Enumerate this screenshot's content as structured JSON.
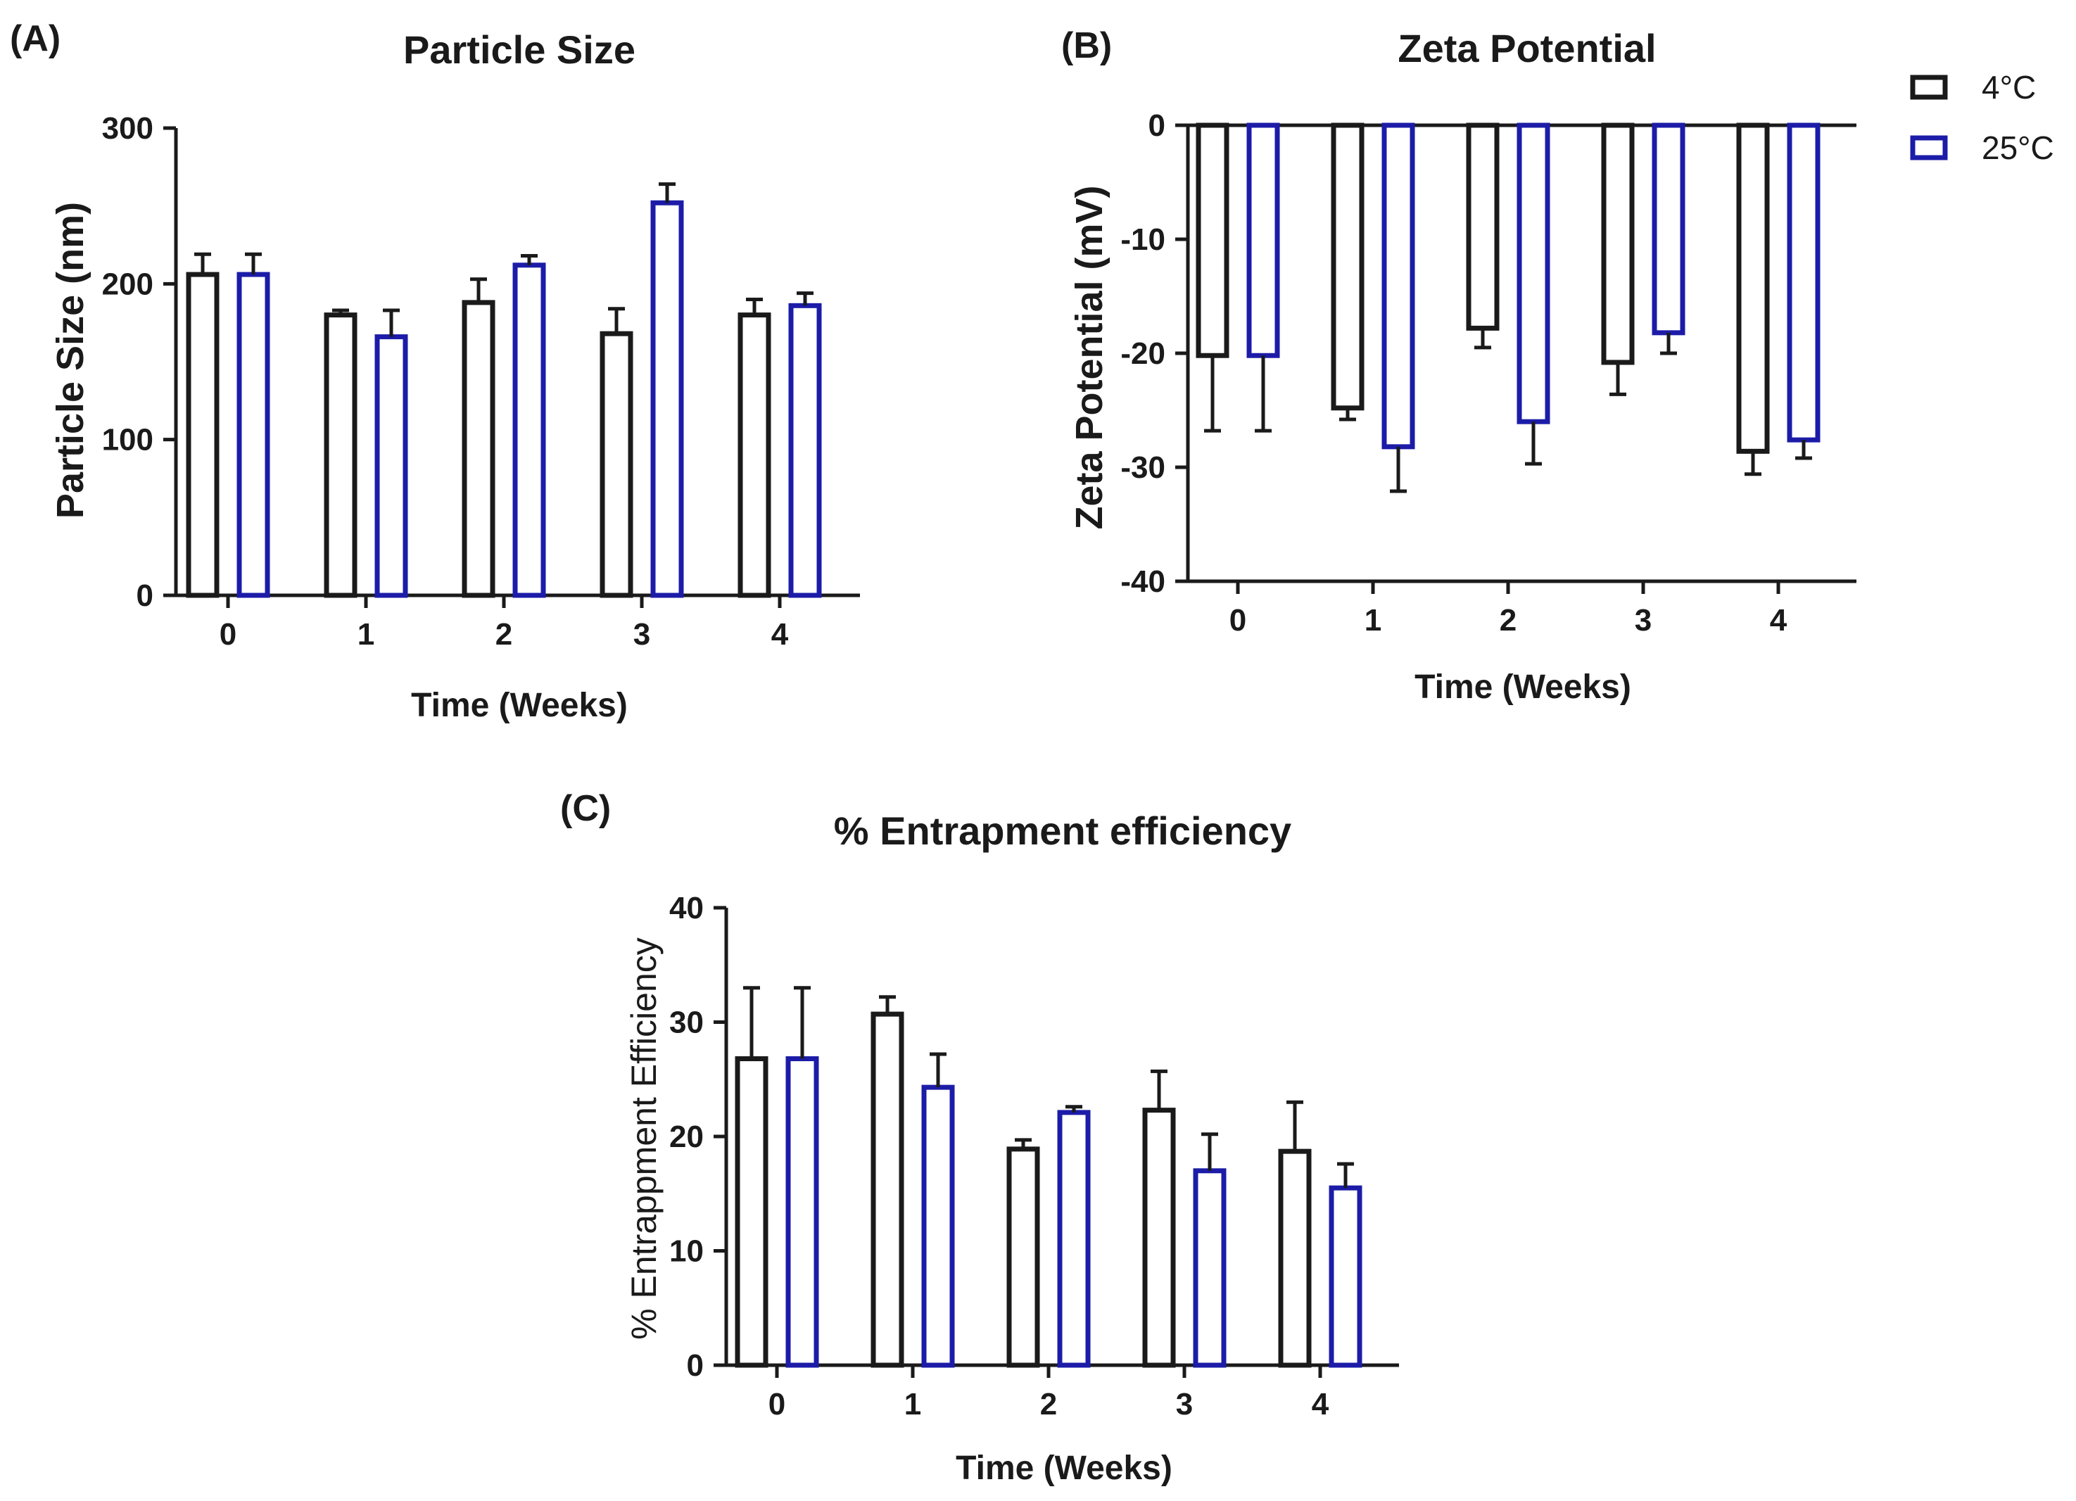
{
  "series_info": [
    {
      "name": "4°C",
      "color": "#1a1a1a"
    },
    {
      "name": "25°C",
      "color": "#1c1ca8"
    }
  ],
  "chart_data": [
    {
      "panel": "(A)",
      "type": "bar",
      "title": "Particle Size",
      "xlabel": "Time (Weeks)",
      "ylabel": "Particle Size (nm)",
      "categories": [
        "0",
        "1",
        "2",
        "3",
        "4"
      ],
      "ylim": [
        0,
        300
      ],
      "yticks": [
        "0",
        "100",
        "200",
        "300"
      ],
      "series": [
        {
          "name": "4°C",
          "values": [
            206,
            180,
            188,
            168,
            180
          ],
          "errors": [
            13,
            3,
            15,
            16,
            10
          ]
        },
        {
          "name": "25°C",
          "values": [
            206,
            166,
            212,
            252,
            186
          ],
          "errors": [
            13,
            17,
            6,
            12,
            8
          ]
        }
      ]
    },
    {
      "panel": "(B)",
      "type": "bar",
      "title": "Zeta Potential",
      "xlabel": "Time (Weeks)",
      "ylabel": "Zeta Potential (mV)",
      "categories": [
        "0",
        "1",
        "2",
        "3",
        "4"
      ],
      "ylim": [
        -40,
        0
      ],
      "yticks": [
        "-40",
        "-30",
        "-20",
        "-10",
        "0"
      ],
      "series": [
        {
          "name": "4°C",
          "values": [
            -20.2,
            -24.8,
            -17.8,
            -20.8,
            -28.6
          ],
          "errors": [
            6.6,
            1.0,
            1.7,
            2.8,
            2.0
          ]
        },
        {
          "name": "25°C",
          "values": [
            -20.2,
            -28.2,
            -26.0,
            -18.2,
            -27.6
          ],
          "errors": [
            6.6,
            3.9,
            3.7,
            1.8,
            1.6
          ]
        }
      ]
    },
    {
      "panel": "(C)",
      "type": "bar",
      "title": "% Entrapment efficiency",
      "xlabel": "Time (Weeks)",
      "ylabel": "% Entrappment Efficiency",
      "categories": [
        "0",
        "1",
        "2",
        "3",
        "4"
      ],
      "ylim": [
        0,
        40
      ],
      "yticks": [
        "0",
        "10",
        "20",
        "30",
        "40"
      ],
      "series": [
        {
          "name": "4°C",
          "values": [
            26.8,
            30.7,
            18.9,
            22.3,
            18.7
          ],
          "errors": [
            6.2,
            1.5,
            0.8,
            3.4,
            4.3
          ]
        },
        {
          "name": "25°C",
          "values": [
            26.8,
            24.3,
            22.1,
            17.0,
            15.5
          ],
          "errors": [
            6.2,
            2.9,
            0.5,
            3.2,
            2.1
          ]
        }
      ]
    }
  ]
}
